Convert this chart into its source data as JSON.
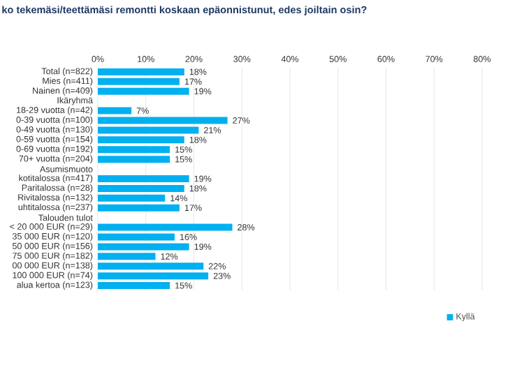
{
  "chart_data": {
    "type": "bar",
    "orientation": "horizontal",
    "title": "ko tekemäsi/teettämäsi remontti koskaan epäonnistunut, edes joiltain osin?",
    "categories": [
      "Total (n=822)",
      "Mies (n=411)",
      "Nainen  (n=409)",
      "Ikäryhmä",
      "18-29 vuotta (n=42)",
      "0-39 vuotta (n=100)",
      "0-49 vuotta (n=130)",
      "0-59 vuotta (n=154)",
      "0-69 vuotta (n=192)",
      "70+ vuotta (n=204)",
      "Asumismuoto",
      "kotitalossa (n=417)",
      "Paritalossa (n=28)",
      "Rivitalossa (n=132)",
      "uhtitalossa (n=237)",
      "Talouden tulot",
      "< 20 000 EUR (n=29)",
      "35 000 EUR (n=120)",
      "50 000 EUR (n=156)",
      "75 000 EUR (n=182)",
      "00 000 EUR (n=138)",
      "100 000 EUR (n=74)",
      "alua kertoa (n=123)"
    ],
    "series": [
      {
        "name": "Kyllä",
        "color": "#00b0f0",
        "values": [
          18,
          17,
          19,
          null,
          7,
          27,
          21,
          18,
          15,
          15,
          null,
          19,
          18,
          14,
          17,
          null,
          28,
          16,
          19,
          12,
          22,
          23,
          15
        ],
        "value_labels": [
          "18%",
          "17%",
          "19%",
          null,
          "7%",
          "27%",
          "21%",
          "18%",
          "15%",
          "15%",
          null,
          "19%",
          "18%",
          "14%",
          "17%",
          null,
          "28%",
          "16%",
          "19%",
          "12%",
          "22%",
          "23%",
          "15%"
        ]
      }
    ],
    "xlim": [
      0,
      80
    ],
    "xticks": [
      {
        "value": 0,
        "label": "0%"
      },
      {
        "value": 10,
        "label": "10%"
      },
      {
        "value": 20,
        "label": "20%"
      },
      {
        "value": 30,
        "label": "30%"
      },
      {
        "value": 40,
        "label": "40%"
      },
      {
        "value": 50,
        "label": "50%"
      },
      {
        "value": 60,
        "label": "60%"
      },
      {
        "value": 70,
        "label": "70%"
      },
      {
        "value": 80,
        "label": "80%"
      }
    ],
    "grid": "x",
    "legend": "bottom right"
  }
}
